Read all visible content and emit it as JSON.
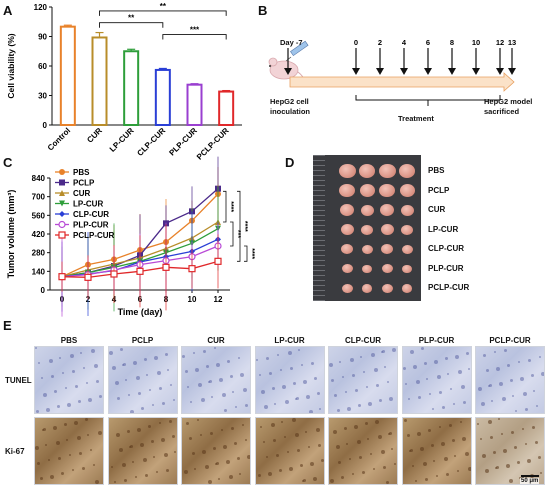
{
  "panels": {
    "a": "A",
    "b": "B",
    "c": "C",
    "d": "D",
    "e": "E"
  },
  "panelA": {
    "chart_data": {
      "type": "bar",
      "categories": [
        "Control",
        "CUR",
        "LP-CUR",
        "CLP-CUR",
        "PLP-CUR",
        "PCLP-CUR"
      ],
      "values": [
        100,
        89,
        75,
        56,
        41,
        34
      ],
      "errors": [
        1.5,
        5,
        2,
        1.5,
        1,
        1
      ],
      "colors": [
        "#e8822a",
        "#b88d2a",
        "#2e9e3a",
        "#2a3fd6",
        "#9a3fd0",
        "#e0282a"
      ],
      "ylabel": "Cell viability (%)",
      "yticks": [
        "0",
        "30",
        "60",
        "90",
        "120"
      ],
      "ylim": [
        0,
        120
      ],
      "significance": [
        {
          "from": "CUR",
          "to": "PCLP-CUR",
          "label": "**"
        },
        {
          "from": "CUR",
          "to": "CLP-CUR",
          "label": "**"
        },
        {
          "from": "CLP-CUR",
          "to": "PCLP-CUR",
          "label": "***"
        }
      ]
    }
  },
  "panelB": {
    "day_start": "Day -7",
    "days": [
      "0",
      "2",
      "4",
      "6",
      "8",
      "10",
      "12",
      "13"
    ],
    "left_caption_1": "HepG2 cell",
    "left_caption_2": "inoculation",
    "treatment": "Treatment",
    "right_caption_1": "HepG2 model",
    "right_caption_2": "sacrificed"
  },
  "panelC": {
    "chart_data": {
      "type": "line",
      "x": [
        0,
        2,
        4,
        6,
        8,
        10,
        12
      ],
      "xlabel": "Time (day)",
      "ylabel": "Tumor volume (mm³)",
      "xticks": [
        "0",
        "2",
        "4",
        "6",
        "8",
        "10",
        "12"
      ],
      "yticks": [
        "0",
        "140",
        "280",
        "420",
        "560",
        "700",
        "840"
      ],
      "ylim": [
        0,
        840
      ],
      "series": [
        {
          "name": "PBS",
          "color": "#e8822a",
          "marker": "circle",
          "values": [
            100,
            190,
            230,
            300,
            360,
            520,
            720
          ]
        },
        {
          "name": "PCLP",
          "color": "#4b2a8a",
          "marker": "square",
          "values": [
            100,
            130,
            180,
            260,
            500,
            590,
            760
          ]
        },
        {
          "name": "CUR",
          "color": "#b88d2a",
          "marker": "triangle",
          "values": [
            100,
            150,
            195,
            240,
            310,
            390,
            510
          ]
        },
        {
          "name": "LP-CUR",
          "color": "#2e9e3a",
          "marker": "triangle-down",
          "values": [
            100,
            130,
            170,
            215,
            280,
            350,
            460
          ]
        },
        {
          "name": "CLP-CUR",
          "color": "#2a3fd6",
          "marker": "diamond",
          "values": [
            100,
            120,
            145,
            210,
            250,
            290,
            380
          ]
        },
        {
          "name": "PLP-CUR",
          "color": "#b84ad6",
          "marker": "circle-open",
          "values": [
            100,
            115,
            150,
            190,
            220,
            250,
            330
          ]
        },
        {
          "name": "PCLP-CUR",
          "color": "#e0282a",
          "marker": "square-open",
          "values": [
            100,
            95,
            120,
            140,
            170,
            160,
            215
          ]
        }
      ],
      "stars": [
        "****",
        "***",
        "****",
        "****"
      ]
    }
  },
  "panelD": {
    "rows": [
      "PBS",
      "PCLP",
      "CUR",
      "LP-CUR",
      "CLP-CUR",
      "PLP-CUR",
      "PCLP-CUR"
    ]
  },
  "panelE": {
    "columns": [
      "PBS",
      "PCLP",
      "CUR",
      "LP-CUR",
      "CLP-CUR",
      "PLP-CUR",
      "PCLP-CUR"
    ],
    "rows": [
      "TUNEL",
      "Ki-67"
    ],
    "scalebar": "50 μm"
  }
}
